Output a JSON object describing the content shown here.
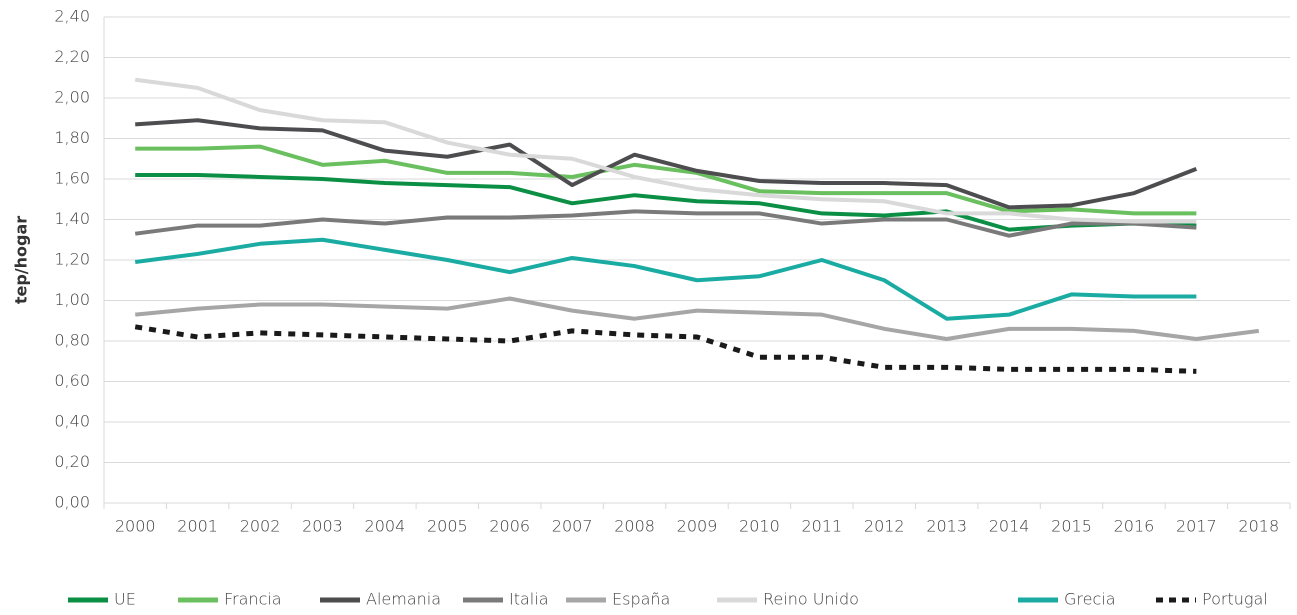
{
  "chart_data": {
    "type": "line",
    "ylabel": "tep/hogar",
    "categories": [
      "2000",
      "2001",
      "2002",
      "2003",
      "2004",
      "2005",
      "2006",
      "2007",
      "2008",
      "2009",
      "2010",
      "2011",
      "2012",
      "2013",
      "2014",
      "2015",
      "2016",
      "2017",
      "2018"
    ],
    "ylim": [
      0,
      2.4
    ],
    "yticks": [
      {
        "value": 0,
        "label": "0,00"
      },
      {
        "value": 0.2,
        "label": "0,20"
      },
      {
        "value": 0.4,
        "label": "0,40"
      },
      {
        "value": 0.6,
        "label": "0,60"
      },
      {
        "value": 0.8,
        "label": "0,80"
      },
      {
        "value": 1.0,
        "label": "1,00"
      },
      {
        "value": 1.2,
        "label": "1,20"
      },
      {
        "value": 1.4,
        "label": "1,40"
      },
      {
        "value": 1.6,
        "label": "1,60"
      },
      {
        "value": 1.8,
        "label": "1,80"
      },
      {
        "value": 2.0,
        "label": "2,00"
      },
      {
        "value": 2.2,
        "label": "2,20"
      },
      {
        "value": 2.4,
        "label": "2,40"
      }
    ],
    "grid": true,
    "legend": "bottom",
    "series": [
      {
        "name": "UE",
        "color": "#0a8f45",
        "values": [
          1.62,
          1.62,
          1.61,
          1.6,
          1.58,
          1.57,
          1.56,
          1.48,
          1.52,
          1.49,
          1.48,
          1.43,
          1.42,
          1.44,
          1.35,
          1.37,
          1.38,
          1.37,
          null
        ]
      },
      {
        "name": "Francia",
        "color": "#6abf5f",
        "values": [
          1.75,
          1.75,
          1.76,
          1.67,
          1.69,
          1.63,
          1.63,
          1.61,
          1.67,
          1.63,
          1.54,
          1.53,
          1.53,
          1.53,
          1.44,
          1.45,
          1.43,
          1.43,
          null
        ]
      },
      {
        "name": "Alemania",
        "color": "#4d4d4f",
        "values": [
          1.87,
          1.89,
          1.85,
          1.84,
          1.74,
          1.71,
          1.77,
          1.57,
          1.72,
          1.64,
          1.59,
          1.58,
          1.58,
          1.57,
          1.46,
          1.47,
          1.53,
          1.65,
          null
        ]
      },
      {
        "name": "Italia",
        "color": "#7a7a7a",
        "values": [
          1.33,
          1.37,
          1.37,
          1.4,
          1.38,
          1.41,
          1.41,
          1.42,
          1.44,
          1.43,
          1.43,
          1.38,
          1.4,
          1.4,
          1.32,
          1.38,
          1.38,
          1.36,
          null
        ]
      },
      {
        "name": "España",
        "color": "#a6a6a6",
        "values": [
          0.93,
          0.96,
          0.98,
          0.98,
          0.97,
          0.96,
          1.01,
          0.95,
          0.91,
          0.95,
          0.94,
          0.93,
          0.86,
          0.81,
          0.86,
          0.86,
          0.85,
          0.81,
          0.85
        ]
      },
      {
        "name": "Reino Unido",
        "color": "#d9d9d9",
        "values": [
          2.09,
          2.05,
          1.94,
          1.89,
          1.88,
          1.78,
          1.72,
          1.7,
          1.61,
          1.55,
          1.52,
          1.5,
          1.49,
          1.43,
          1.43,
          1.4,
          1.39,
          1.39,
          null
        ]
      },
      {
        "name": "Grecia",
        "color": "#1aaba3",
        "values": [
          1.19,
          1.23,
          1.28,
          1.3,
          1.25,
          1.2,
          1.14,
          1.21,
          1.17,
          1.1,
          1.12,
          1.2,
          1.1,
          0.91,
          0.93,
          1.03,
          1.02,
          1.02,
          null
        ]
      },
      {
        "name": "Portugal",
        "color": "#1a1a1a",
        "dash": true,
        "values": [
          0.87,
          0.82,
          0.84,
          0.83,
          0.82,
          0.81,
          0.8,
          0.85,
          0.83,
          0.82,
          0.72,
          0.72,
          0.67,
          0.67,
          0.66,
          0.66,
          0.66,
          0.65,
          null
        ]
      }
    ]
  }
}
